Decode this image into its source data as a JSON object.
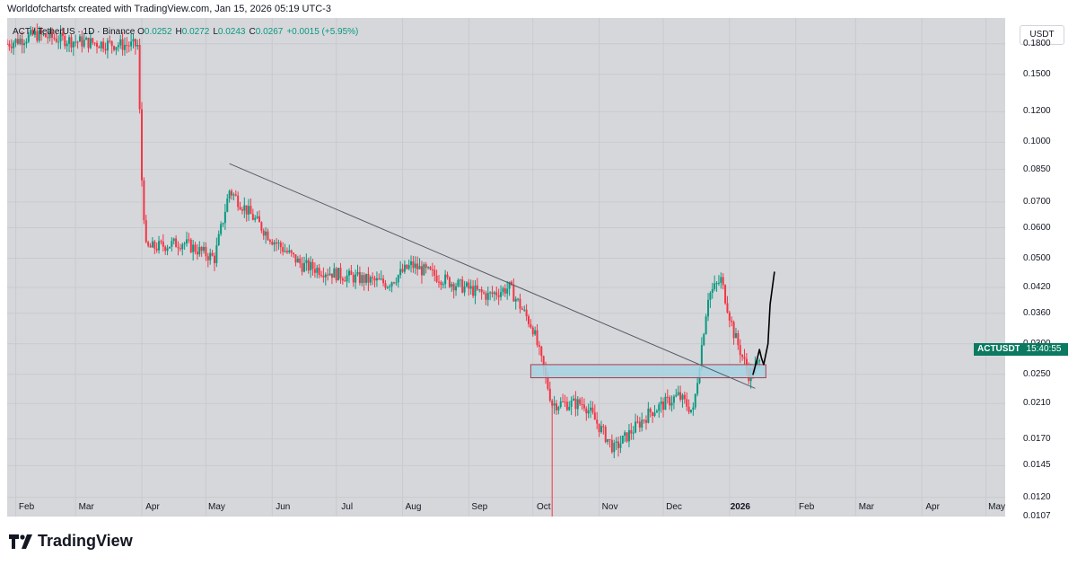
{
  "header": {
    "text": "Worldofchartsfx created with TradingView.com, Jan 15, 2026 05:19 UTC-3"
  },
  "legend": {
    "symbol": "ACT / TetherUS · 1D · Binance",
    "open_label": "O",
    "open": "0.0252",
    "high_label": "H",
    "high": "0.0272",
    "low_label": "L",
    "low": "0.0243",
    "close_label": "C",
    "close": "0.0267",
    "change": "+0.0015 (+5.95%)"
  },
  "price_axis": {
    "unit": "USDT",
    "ticks": [
      "0.1800",
      "0.1500",
      "0.1200",
      "0.1000",
      "0.0850",
      "0.0700",
      "0.0600",
      "0.0500",
      "0.0420",
      "0.0360",
      "0.0300",
      "0.0250",
      "0.0210",
      "0.0170",
      "0.0145",
      "0.0120",
      "0.0107"
    ]
  },
  "price_tag": {
    "symbol": "ACTUSDT",
    "countdown": "15:40:55"
  },
  "time_axis": {
    "ticks": [
      "Feb",
      "Mar",
      "Apr",
      "May",
      "Jun",
      "Jul",
      "Aug",
      "Sep",
      "Oct",
      "Nov",
      "Dec",
      "2026",
      "Feb",
      "Mar",
      "Apr",
      "May"
    ]
  },
  "footer": {
    "brand": "TradingView"
  },
  "colors": {
    "up": "#089981",
    "down": "#f23645",
    "background": "#d6d7db",
    "zone": "#a7d3e3"
  },
  "chart_data": {
    "type": "candlestick",
    "yscale": "log",
    "ylim": [
      0.0107,
      0.21
    ],
    "xlim": [
      "2025-01-28",
      "2026-05-10"
    ],
    "series": [
      {
        "values": [
          {
            "date": "2025-01-28",
            "close": 0.18
          },
          {
            "date": "2025-02-10",
            "close": 0.19
          },
          {
            "date": "2025-02-28",
            "close": 0.183
          },
          {
            "date": "2025-03-15",
            "close": 0.18
          },
          {
            "date": "2025-03-30",
            "close": 0.178
          },
          {
            "date": "2025-04-01",
            "close": 0.08
          },
          {
            "date": "2025-04-03",
            "close": 0.053
          },
          {
            "date": "2025-04-20",
            "close": 0.055
          },
          {
            "date": "2025-05-05",
            "close": 0.05
          },
          {
            "date": "2025-05-12",
            "close": 0.075
          },
          {
            "date": "2025-06-01",
            "close": 0.056
          },
          {
            "date": "2025-06-15",
            "close": 0.048
          },
          {
            "date": "2025-07-05",
            "close": 0.045
          },
          {
            "date": "2025-07-25",
            "close": 0.043
          },
          {
            "date": "2025-08-05",
            "close": 0.048
          },
          {
            "date": "2025-08-25",
            "close": 0.043
          },
          {
            "date": "2025-09-10",
            "close": 0.04
          },
          {
            "date": "2025-09-20",
            "close": 0.042
          },
          {
            "date": "2025-10-01",
            "close": 0.033
          },
          {
            "date": "2025-10-10",
            "close": 0.021
          },
          {
            "date": "2025-10-25",
            "close": 0.021
          },
          {
            "date": "2025-11-08",
            "close": 0.016
          },
          {
            "date": "2025-11-25",
            "close": 0.02
          },
          {
            "date": "2025-12-08",
            "close": 0.022
          },
          {
            "date": "2025-12-15",
            "close": 0.02
          },
          {
            "date": "2025-12-22",
            "close": 0.04
          },
          {
            "date": "2025-12-28",
            "close": 0.044
          },
          {
            "date": "2026-01-03",
            "close": 0.032
          },
          {
            "date": "2026-01-10",
            "close": 0.025
          },
          {
            "date": "2026-01-15",
            "close": 0.0267
          }
        ]
      }
    ],
    "annotations": {
      "trendline": [
        {
          "date": "2025-05-12",
          "price": 0.088
        },
        {
          "date": "2026-01-13",
          "price": 0.023
        }
      ],
      "zone": {
        "from": "2025-09-30",
        "to": "2026-01-18",
        "low": 0.0245,
        "high": 0.0265
      },
      "projection": [
        {
          "date": "2026-01-12",
          "price": 0.025
        },
        {
          "date": "2026-01-14",
          "price": 0.0275
        },
        {
          "date": "2026-01-15",
          "price": 0.029
        },
        {
          "date": "2026-01-16",
          "price": 0.0275
        },
        {
          "date": "2026-01-17",
          "price": 0.0265
        },
        {
          "date": "2026-01-19",
          "price": 0.03
        },
        {
          "date": "2026-01-20",
          "price": 0.038
        },
        {
          "date": "2026-01-22",
          "price": 0.046
        }
      ]
    }
  }
}
